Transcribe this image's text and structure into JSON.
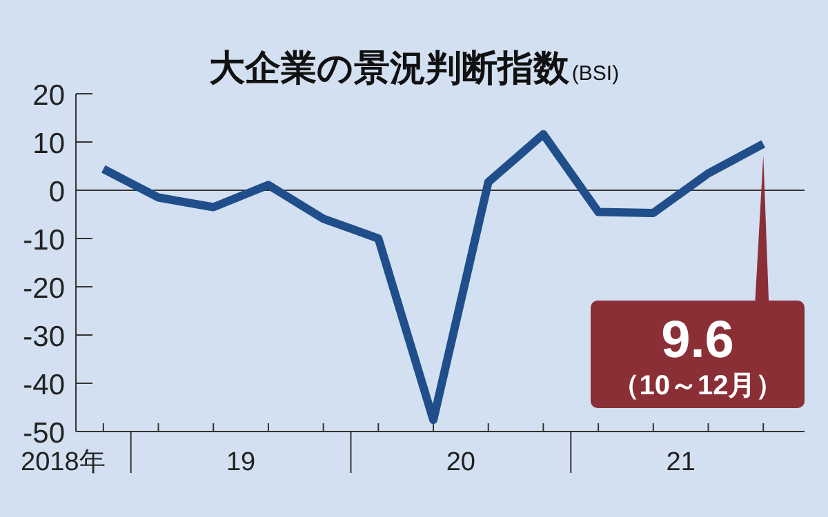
{
  "chart_data": {
    "type": "line",
    "title": "大企業の景況判断指数",
    "subtitle": "(BSI)",
    "categories": [
      null,
      null,
      null,
      null,
      null,
      null,
      null,
      null,
      null,
      null,
      null,
      null,
      null
    ],
    "series": [
      {
        "color": "#1f4e8a",
        "values": [
          4.4,
          -1.5,
          -3.5,
          1.1,
          -5.9,
          -10,
          -47.6,
          1.7,
          11.6,
          -4.5,
          -4.7,
          3.5,
          9.6
        ]
      }
    ],
    "ylim": [
      -50,
      20
    ],
    "yticks": [
      20,
      10,
      0,
      -10,
      -20,
      -30,
      -40,
      -50
    ],
    "ref_lines": [
      {
        "axis": "y",
        "value": 0,
        "color": "#333333"
      }
    ],
    "annotations": [
      "9.6\n（10～12月）",
      "2018年",
      "19",
      "20",
      "21"
    ],
    "grid": false,
    "marker": "none",
    "line_style": "solid"
  }
}
